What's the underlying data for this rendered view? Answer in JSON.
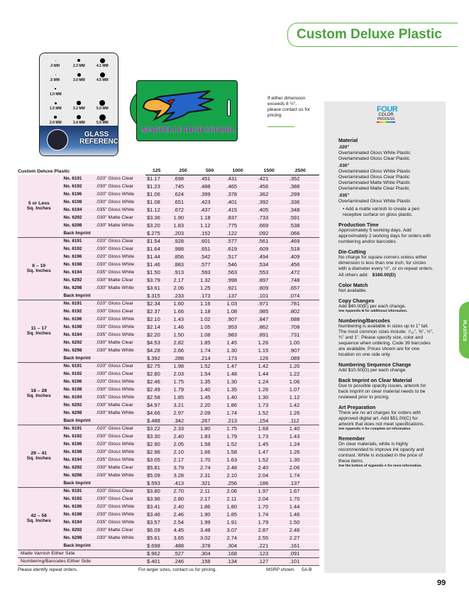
{
  "title": "Custom Deluxe Plastic",
  "glass_card": {
    "labels": [
      ".3 MM",
      "2.3 MM",
      "4.1 MM",
      ".5 MM",
      "3.0 MM",
      "4.5 MM",
      "1.0 MM",
      "",
      "",
      "1.5 MM",
      "3.2 MM",
      "5.0 MM",
      "2.0 MM",
      "3.4 MM",
      "5.5 MM"
    ],
    "heading": "GLASS REFERENCE"
  },
  "tag_text": "MARTELLE HIGH SCHOOL",
  "size_note": "If either dimension exceeds 8 ½\", please contact us for pricing.",
  "table": {
    "title": "Custom Deluxe Plastic",
    "quantities": [
      "125",
      "250",
      "500",
      "1000",
      "1500",
      "2500"
    ],
    "groups": [
      {
        "label": [
          "5 or Less",
          "Sq. Inches"
        ],
        "rows": [
          [
            "No. 6191",
            ".020\" Gloss Clear",
            "$1.17",
            ".698",
            ".451",
            ".431",
            ".421",
            ".352"
          ],
          [
            "No. 6192",
            ".030\" Gloss Clear",
            "$1.23",
            ".745",
            ".488",
            ".465",
            ".456",
            ".388"
          ],
          [
            "No. 6196",
            ".020\" Gloss White",
            "$1.06",
            ".624",
            ".399",
            ".378",
            ".362",
            ".299"
          ],
          [
            "No. 6198",
            ".030\" Gloss White",
            "$1.08",
            ".651",
            ".423",
            ".401",
            ".392",
            ".336"
          ],
          [
            "No. 6194",
            ".035\" Gloss White",
            "$1.12",
            ".672",
            ".437",
            ".415",
            ".405",
            ".348"
          ],
          [
            "No. 6292",
            ".030\" Matte Clear",
            "$3.36",
            "1.90",
            "1.18",
            ".837",
            ".733",
            ".591"
          ],
          [
            "No. 6298",
            ".030\" Matte White",
            "$3.20",
            "1.83",
            "1.12",
            ".775",
            ".669",
            ".538"
          ],
          [
            "Back Imprint",
            "",
            "$.275",
            ".203",
            ".152",
            ".122",
            ".092",
            ".066"
          ]
        ]
      },
      {
        "label": [
          "6 – 10",
          "Sq. Inches"
        ],
        "rows": [
          [
            "No. 6191",
            ".020\" Gloss Clear",
            "$1.54",
            ".928",
            ".601",
            ".577",
            ".561",
            ".469"
          ],
          [
            "No. 6192",
            ".030\" Gloss Clear",
            "$1.64",
            ".988",
            ".651",
            ".619",
            ".609",
            ".518"
          ],
          [
            "No. 6196",
            ".020\" Gloss White",
            "$1.44",
            ".856",
            ".542",
            ".517",
            ".494",
            ".409"
          ],
          [
            "No. 6198",
            ".030\" Gloss White",
            "$1.46",
            ".883",
            ".577",
            ".546",
            ".534",
            ".456"
          ],
          [
            "No. 6194",
            ".035\" Gloss White",
            "$1.50",
            ".913",
            ".593",
            ".563",
            ".553",
            ".472"
          ],
          [
            "No. 6292",
            ".030\" Matte Clear",
            "$3.79",
            "2.17",
            "1.32",
            ".998",
            ".897",
            ".748"
          ],
          [
            "No. 6298",
            ".030\" Matte White",
            "$3.61",
            "2.06",
            "1.25",
            ".921",
            ".809",
            ".657"
          ],
          [
            "Back Imprint",
            "",
            "$.315",
            ".233",
            ".173",
            ".137",
            ".101",
            ".074"
          ]
        ]
      },
      {
        "label": [
          "11 – 17",
          "Sq. Inches"
        ],
        "rows": [
          [
            "No. 6191",
            ".020\" Gloss Clear",
            "$2.34",
            "1.60",
            "1.16",
            "1.03",
            ".971",
            ".781"
          ],
          [
            "No. 6192",
            ".030\" Gloss Clear",
            "$2.37",
            "1.66",
            "1.18",
            "1.08",
            ".985",
            ".802"
          ],
          [
            "No. 6196",
            ".020\" Gloss White",
            "$2.10",
            "1.43",
            "1.02",
            ".907",
            ".847",
            ".688"
          ],
          [
            "No. 6198",
            ".030\" Gloss White",
            "$2.14",
            "1.46",
            "1.05",
            ".953",
            ".862",
            ".708"
          ],
          [
            "No. 6194",
            ".035\" Gloss White",
            "$2.20",
            "1.50",
            "1.08",
            ".983",
            ".891",
            ".731"
          ],
          [
            "No. 6292",
            ".030\" Matte Clear",
            "$4.53",
            "2.82",
            "1.85",
            "1.45",
            "1.26",
            "1.00"
          ],
          [
            "No. 6298",
            ".030\" Matte White",
            "$4.28",
            "2.66",
            "1.74",
            "1.30",
            "1.15",
            ".907"
          ],
          [
            "Back Imprint",
            "",
            "$.392",
            ".288",
            ".214",
            ".173",
            ".126",
            ".089"
          ]
        ]
      },
      {
        "label": [
          "18 – 28",
          "Sq. Inches"
        ],
        "rows": [
          [
            "No. 6191",
            ".020\" Gloss Clear",
            "$2.75",
            "1.98",
            "1.52",
            "1.47",
            "1.42",
            "1.20"
          ],
          [
            "No. 6192",
            ".030\" Gloss Clear",
            "$2.80",
            "2.03",
            "1.54",
            "1.48",
            "1.44",
            "1.22"
          ],
          [
            "No. 6196",
            ".020\" Gloss White",
            "$2.46",
            "1.75",
            "1.35",
            "1.30",
            "1.24",
            "1.06"
          ],
          [
            "No. 6198",
            ".030\" Gloss White",
            "$2.49",
            "1.79",
            "1.40",
            "1.35",
            "1.26",
            "1.07"
          ],
          [
            "No. 6194",
            ".035\" Gloss White",
            "$2.58",
            "1.85",
            "1.45",
            "1.40",
            "1.30",
            "1.12"
          ],
          [
            "No. 6292",
            ".030\" Matte Clear",
            "$4.97",
            "3.21",
            "2.20",
            "1.86",
            "1.73",
            "1.42"
          ],
          [
            "No. 6298",
            ".030\" Matte White",
            "$4.66",
            "2.97",
            "2.09",
            "1.74",
            "1.52",
            "1.26"
          ],
          [
            "Back Imprint",
            "",
            "$.488",
            ".342",
            ".267",
            ".213",
            ".154",
            ".112"
          ]
        ]
      },
      {
        "label": [
          "29 – 41",
          "Sq. Inches"
        ],
        "rows": [
          [
            "No. 6191",
            ".020\" Gloss Clear",
            "$3.22",
            "2.33",
            "1.80",
            "1.75",
            "1.68",
            "1.40"
          ],
          [
            "No. 6192",
            ".030\" Gloss Clear",
            "$3.30",
            "2.40",
            "1.83",
            "1.79",
            "1.73",
            "1.43"
          ],
          [
            "No. 6196",
            ".020\" Gloss White",
            "$2.90",
            "2.05",
            "1.58",
            "1.52",
            "1.45",
            "1.24"
          ],
          [
            "No. 6198",
            ".030\" Gloss White",
            "$2.96",
            "2.10",
            "1.66",
            "1.58",
            "1.47",
            "1.26"
          ],
          [
            "No. 6194",
            ".035\" Gloss White",
            "$3.05",
            "2.17",
            "1.70",
            "1.63",
            "1.52",
            "1.30"
          ],
          [
            "No. 6292",
            ".030\" Matte Clear",
            "$5.81",
            "3.79",
            "2.74",
            "2.48",
            "2.40",
            "2.06"
          ],
          [
            "No. 6298",
            ".030\" Matte White",
            "$5.09",
            "3.28",
            "2.31",
            "2.10",
            "2.04",
            "1.74"
          ],
          [
            "Back Imprint",
            "",
            "$.593",
            ".413",
            ".321",
            ".256",
            ".186",
            ".137"
          ]
        ]
      },
      {
        "label": [
          "42 – 56",
          "Sq. Inches"
        ],
        "rows": [
          [
            "No. 6191",
            ".020\" Gloss Clear",
            "$3.80",
            "2.70",
            "2.11",
            "2.06",
            "1.97",
            "1.67"
          ],
          [
            "No. 6192",
            ".030\" Gloss Clear",
            "$3.96",
            "2.80",
            "2.17",
            "2.11",
            "2.04",
            "1.70"
          ],
          [
            "No. 6196",
            ".020\" Gloss White",
            "$3.41",
            "2.40",
            "1.86",
            "1.80",
            "1.70",
            "1.44"
          ],
          [
            "No. 6198",
            ".030\" Gloss White",
            "$3.46",
            "2.46",
            "1.90",
            "1.85",
            "1.74",
            "1.46"
          ],
          [
            "No. 6194",
            ".035\" Gloss White",
            "$3.57",
            "2.54",
            "1.99",
            "1.91",
            "1.79",
            "1.50"
          ],
          [
            "No. 6292",
            ".030\" Matte Clear",
            "$6.09",
            "4.45",
            "3.48",
            "3.07",
            "2.87",
            "2.46"
          ],
          [
            "No. 6298",
            ".030\" Matte White",
            "$5.61",
            "3.65",
            "3.02",
            "2.74",
            "2.55",
            "2.27"
          ],
          [
            "Back Imprint",
            "",
            "$.698",
            ".488",
            ".378",
            ".304",
            ".221",
            ".161"
          ]
        ]
      }
    ],
    "extras": [
      [
        "Matte Varnish Either Side",
        "$.962",
        ".527",
        ".304",
        ".168",
        ".123",
        ".091"
      ],
      [
        "Numbering/Barcodes Either Side",
        "$.401",
        ".246",
        ".158",
        ".134",
        ".127",
        ".101"
      ]
    ]
  },
  "footer": {
    "left": "Please identify repeat orders.",
    "center": "For larger sizes, contact us for pricing.",
    "right_italic": "MSRP shown.",
    "code": "5A-B"
  },
  "logo": {
    "line1": "FOUR",
    "line2": "COLOR",
    "line3": "PROCESS"
  },
  "panel": {
    "material": {
      "heading": "Material",
      "t020": ".020\"",
      "m020": [
        "Overlaminated Gloss White Plastic",
        "Overlaminated Gloss Clear Plastic"
      ],
      "t030": ".030\"",
      "m030": [
        "Overlaminated Gloss White Plastic",
        "Overlaminated Gloss Clear Plastic",
        "Overlaminated Matte White Plastic",
        "Overlaminated Matte Clear Plastic"
      ],
      "t035": ".035\"",
      "m035": [
        "Overlaminated Gloss White Plastic"
      ],
      "bullet": "Add a matte varnish to create a pen receptive surface on gloss plastic."
    },
    "production": {
      "heading": "Production Time",
      "text": "Approximately 5 working days. Add approximately 2 working days for orders with numbering and/or barcodes."
    },
    "die": {
      "heading": "Die-Cutting",
      "text": "No charge for square corners unless either dimension is less than one inch, for circles with a diameter every ½\", or on repeat orders.",
      "others_label": "All others add:",
      "others_price": "$160.00(D)"
    },
    "color": {
      "heading": "Color Match",
      "text": "Not available."
    },
    "copy": {
      "heading": "Copy Changes",
      "text": "Add $40.00(E) per each change.",
      "small": "See Appendix B for additional information."
    },
    "numbering": {
      "heading": "Numbering/Barcodes",
      "text": "Numbering is available in sizes up to 1\" tall. The most common sizes include: ⁷⁄₃₂\", ⅜\", ½\", ¾\" and 1\". Please specify size, color and sequence when ordering. Code 39 barcodes are available. Prices shown are for one location on one side only."
    },
    "sequence": {
      "heading": "Numbering Sequence Change",
      "text": "Add $10.50(G) per each change."
    },
    "back": {
      "heading": "Back Imprint on Clear Material",
      "text": "Due to possible opacity issues, artwork for back imprint on clear material needs to be reviewed prior to pricing."
    },
    "art": {
      "heading": "Art Preparation",
      "text": "There are no art charges for orders with approved digital art. Add $51.00(C) for artwork that does not meet specifications.",
      "small": "See Appendix A for complete art information."
    },
    "remember": {
      "heading": "Remember",
      "text": "On clear materials, white is highly recommended to improve ink opacity and contrast. White is included in the price of these items.",
      "small": "See the bottom of Appendix A for more information."
    }
  },
  "side_tab": "PLASTICS",
  "page_number": "99",
  "colors": {
    "accent": "#4aa33a",
    "table_bg": "#f9e5ef",
    "panel_bg": "#e8e8e8"
  }
}
